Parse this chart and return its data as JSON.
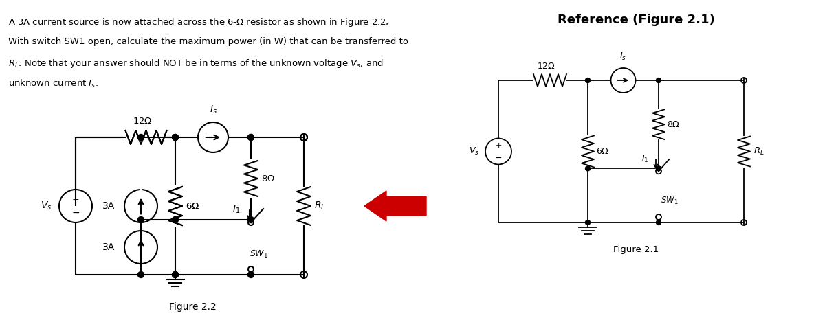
{
  "title_text": "Reference (Figure 2.1)",
  "problem_text_lines": [
    "A 3A current source is now attached across the 6-Ω resistor as shown in Figure 2.2,",
    "With switch SW1 open, calculate the maximum power (in W) that can be transferred to",
    "Rₗ. Note that your answer should NOT be in terms of the unknown voltage Vₛ, and",
    "unknown current Iₛ."
  ],
  "fig22_label": "Figure 2.2",
  "fig21_label": "Figure 2.1",
  "bg_color": "#ffffff",
  "line_color": "#000000",
  "arrow_color": "#cc0000"
}
